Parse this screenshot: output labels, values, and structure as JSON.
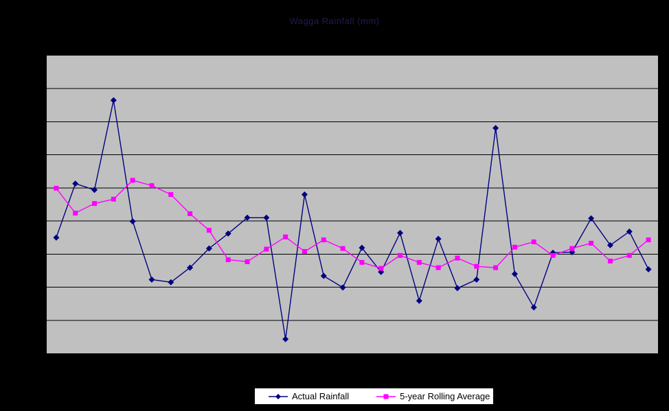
{
  "title": {
    "text": "Wagga Rainfall (mm)",
    "color": "#1d1d4f"
  },
  "colors": {
    "page_background": "#000000",
    "plot_background": "#c0c0c0",
    "gridline": "#000000",
    "legend_background": "#ffffff",
    "legend_border": "#000000",
    "series_actual": "#000080",
    "series_rolling": "#ff00ff"
  },
  "legend": {
    "items": [
      {
        "label": "Actual Rainfall",
        "color": "#000080",
        "marker": "diamond"
      },
      {
        "label": "5-year Rolling Average",
        "color": "#ff00ff",
        "marker": "square"
      }
    ]
  },
  "chart_data": {
    "type": "line",
    "title": "Wagga Rainfall (mm)",
    "n_points": 32,
    "x_labels_visible": false,
    "y_labels_visible": false,
    "ylim": [
      0,
      900
    ],
    "y_gridline_values": [
      100,
      200,
      300,
      400,
      500,
      600,
      700,
      800
    ],
    "grid": "horizontal",
    "legend_position": "bottom",
    "series": [
      {
        "name": "Actual Rainfall",
        "color": "#000080",
        "marker": "diamond",
        "values": [
          350,
          513,
          494,
          765,
          399,
          223,
          215,
          259,
          317,
          362,
          410,
          410,
          43,
          480,
          234,
          199,
          319,
          246,
          364,
          159,
          346,
          197,
          223,
          681,
          240,
          139,
          304,
          306,
          408,
          327,
          368,
          254
        ]
      },
      {
        "name": "5-year Rolling Average",
        "color": "#ff00ff",
        "marker": "square",
        "values": [
          499,
          424,
          453,
          466,
          523,
          507,
          480,
          422,
          372,
          283,
          277,
          315,
          352,
          308,
          343,
          317,
          275,
          257,
          296,
          275,
          259,
          288,
          263,
          259,
          321,
          337,
          296,
          317,
          333,
          279,
          296,
          343
        ]
      }
    ]
  }
}
